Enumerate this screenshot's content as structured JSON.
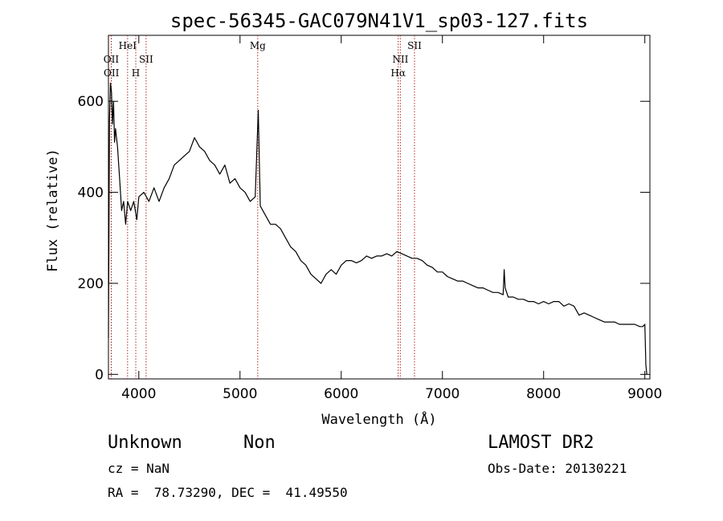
{
  "chart_data": {
    "type": "line",
    "title": "spec-56345-GAC079N41V1_sp03-127.fits",
    "xlabel": "Wavelength (Å)",
    "ylabel": "Flux (relative)",
    "xlim": [
      3700,
      9050
    ],
    "ylim": [
      -10,
      745
    ],
    "x_ticks": [
      4000,
      5000,
      6000,
      7000,
      8000,
      9000
    ],
    "y_ticks": [
      0,
      200,
      400,
      600
    ],
    "grid": false,
    "series": [
      {
        "x": [
          3700,
          3710,
          3720,
          3730,
          3740,
          3750,
          3760,
          3770,
          3790,
          3810,
          3830,
          3850,
          3870,
          3890,
          3920,
          3950,
          3980,
          4000,
          4050,
          4100,
          4150,
          4200,
          4250,
          4300,
          4350,
          4400,
          4450,
          4500,
          4550,
          4600,
          4650,
          4700,
          4750,
          4800,
          4850,
          4900,
          4950,
          5000,
          5050,
          5100,
          5150,
          5180,
          5200,
          5250,
          5300,
          5350,
          5400,
          5450,
          5500,
          5550,
          5600,
          5650,
          5700,
          5750,
          5800,
          5850,
          5900,
          5950,
          6000,
          6050,
          6100,
          6150,
          6200,
          6250,
          6300,
          6350,
          6400,
          6450,
          6500,
          6550,
          6600,
          6650,
          6700,
          6750,
          6800,
          6850,
          6900,
          6950,
          7000,
          7050,
          7100,
          7150,
          7200,
          7250,
          7300,
          7350,
          7400,
          7450,
          7500,
          7550,
          7600,
          7610,
          7620,
          7650,
          7700,
          7750,
          7800,
          7850,
          7900,
          7950,
          8000,
          8050,
          8100,
          8150,
          8200,
          8250,
          8300,
          8350,
          8400,
          8450,
          8500,
          8550,
          8600,
          8650,
          8700,
          8750,
          8800,
          8850,
          8900,
          8950,
          8980,
          9000,
          9010,
          9020
        ],
        "y": [
          80,
          560,
          640,
          620,
          550,
          600,
          510,
          540,
          500,
          430,
          360,
          380,
          330,
          380,
          360,
          380,
          340,
          390,
          400,
          380,
          410,
          380,
          410,
          430,
          460,
          470,
          480,
          490,
          520,
          500,
          490,
          470,
          460,
          440,
          460,
          420,
          430,
          410,
          400,
          380,
          390,
          580,
          370,
          350,
          330,
          330,
          320,
          300,
          280,
          270,
          250,
          240,
          220,
          210,
          200,
          220,
          230,
          220,
          240,
          250,
          250,
          245,
          250,
          260,
          255,
          260,
          260,
          265,
          260,
          270,
          265,
          260,
          255,
          255,
          250,
          240,
          235,
          225,
          225,
          215,
          210,
          205,
          205,
          200,
          195,
          190,
          190,
          185,
          180,
          180,
          175,
          230,
          190,
          170,
          170,
          165,
          165,
          160,
          160,
          155,
          160,
          155,
          160,
          160,
          150,
          155,
          150,
          130,
          135,
          130,
          125,
          120,
          115,
          115,
          115,
          110,
          110,
          110,
          110,
          105,
          105,
          110,
          20,
          0
        ]
      }
    ],
    "emission_lines": [
      {
        "label": "OII",
        "x": 3727
      },
      {
        "label": "OII",
        "x": 3729
      },
      {
        "label": "HeI",
        "x": 3889
      },
      {
        "label": "H",
        "x": 3970
      },
      {
        "label": "SII",
        "x": 4072
      },
      {
        "label": "Mg",
        "x": 5175
      },
      {
        "label": "NII",
        "x": 6584
      },
      {
        "label": "Hα",
        "x": 6563
      },
      {
        "label": "SII",
        "x": 6724
      }
    ],
    "line_color": "#000000",
    "marker_color": "#b22222"
  },
  "info": {
    "object_class": "Unknown",
    "object_subclass": "Non",
    "survey": "LAMOST DR2",
    "redshift": "cz = NaN",
    "obs_date": "Obs-Date: 20130221",
    "coords": "RA =  78.73290, DEC =  41.49550"
  }
}
